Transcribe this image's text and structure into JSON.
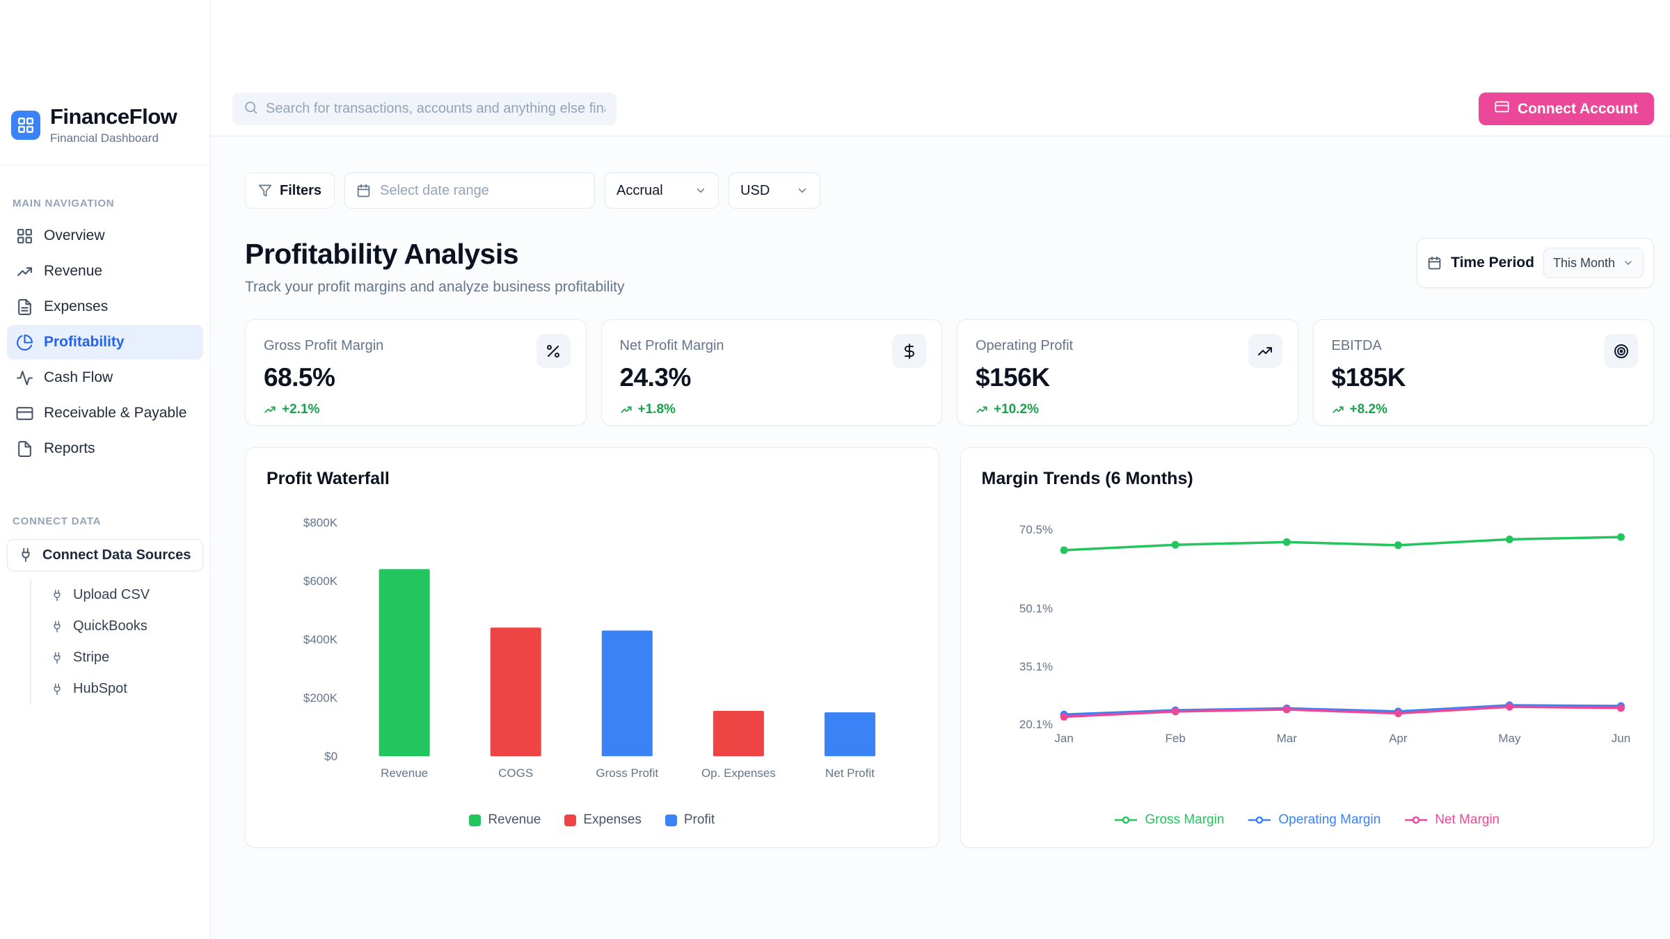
{
  "brand": {
    "name": "FinanceFlow",
    "tagline": "Financial Dashboard",
    "logo_icon": "grid-icon"
  },
  "topbar": {
    "search_placeholder": "Search for transactions, accounts and anything else financial",
    "search_icon": "search-icon",
    "connect_account_label": "Connect Account",
    "connect_account_icon": "credit-card-icon"
  },
  "filters": {
    "filters_label": "Filters",
    "filters_icon": "funnel-icon",
    "date_range_placeholder": "Select date range",
    "date_range_icon": "calendar-icon",
    "accounting_method": "Accrual",
    "currency": "USD"
  },
  "page": {
    "title": "Profitability Analysis",
    "subtitle": "Track your profit margins and analyze business profitability",
    "time_period_label": "Time Period",
    "time_period_value": "This Month",
    "time_period_icon": "calendar-icon"
  },
  "sidebar": {
    "main_nav_label": "MAIN NAVIGATION",
    "items": [
      {
        "label": "Overview",
        "icon": "grid-icon",
        "active": false
      },
      {
        "label": "Revenue",
        "icon": "trending-up-icon",
        "active": false
      },
      {
        "label": "Expenses",
        "icon": "file-text-icon",
        "active": false
      },
      {
        "label": "Profitability",
        "icon": "pie-chart-icon",
        "active": true
      },
      {
        "label": "Cash Flow",
        "icon": "activity-icon",
        "active": false
      },
      {
        "label": "Receivable & Payable",
        "icon": "credit-card-icon",
        "active": false
      },
      {
        "label": "Reports",
        "icon": "file-icon",
        "active": false
      }
    ],
    "connect_data_label": "CONNECT DATA",
    "connect_sources_label": "Connect Data Sources",
    "connect_sources_icon": "plug-icon",
    "sources": [
      {
        "label": "Upload CSV",
        "icon": "plug-icon"
      },
      {
        "label": "QuickBooks",
        "icon": "plug-icon"
      },
      {
        "label": "Stripe",
        "icon": "plug-icon"
      },
      {
        "label": "HubSpot",
        "icon": "plug-icon"
      }
    ]
  },
  "kpis": [
    {
      "title": "Gross Profit Margin",
      "value": "68.5%",
      "change": "+2.1%",
      "icon": "percent-icon"
    },
    {
      "title": "Net Profit Margin",
      "value": "24.3%",
      "change": "+1.8%",
      "icon": "dollar-icon"
    },
    {
      "title": "Operating Profit",
      "value": "$156K",
      "change": "+10.2%",
      "icon": "trending-up-icon"
    },
    {
      "title": "EBITDA",
      "value": "$185K",
      "change": "+8.2%",
      "icon": "target-icon"
    }
  ],
  "colors": {
    "accent_blue": "#3b82f6",
    "active_nav_bg": "#e8f0fe",
    "brand_pink": "#ec4899",
    "positive_green": "#16a34a",
    "revenue_green": "#22c55e",
    "expense_red": "#ef4444",
    "profit_blue": "#3b82f6",
    "net_margin_pink": "#ec4899"
  },
  "chart_data": [
    {
      "type": "bar",
      "title": "Profit Waterfall",
      "categories": [
        "Revenue",
        "COGS",
        "Gross Profit",
        "Op. Expenses",
        "Net Profit"
      ],
      "values": [
        640,
        440,
        430,
        155,
        150
      ],
      "value_unit": "$K",
      "bar_colors": [
        "#22c55e",
        "#ef4444",
        "#3b82f6",
        "#ef4444",
        "#3b82f6"
      ],
      "ylim": [
        0,
        800
      ],
      "yticks": [
        0,
        200,
        400,
        600,
        800
      ],
      "ytick_labels": [
        "$0",
        "$200K",
        "$400K",
        "$600K",
        "$800K"
      ],
      "grid": false,
      "legend_position": "bottom",
      "legend": [
        {
          "label": "Revenue",
          "color": "#22c55e"
        },
        {
          "label": "Expenses",
          "color": "#ef4444"
        },
        {
          "label": "Profit",
          "color": "#3b82f6"
        }
      ]
    },
    {
      "type": "line",
      "title": "Margin Trends (6 Months)",
      "x": [
        "Jan",
        "Feb",
        "Mar",
        "Apr",
        "May",
        "Jun"
      ],
      "series": [
        {
          "name": "Gross Margin",
          "color": "#22c55e",
          "values": [
            65.1,
            66.5,
            67.2,
            66.4,
            67.9,
            68.5
          ]
        },
        {
          "name": "Operating Margin",
          "color": "#3b82f6",
          "values": [
            22.6,
            23.7,
            24.2,
            23.4,
            25.0,
            24.8
          ]
        },
        {
          "name": "Net Margin",
          "color": "#ec4899",
          "values": [
            22.0,
            23.4,
            23.9,
            22.9,
            24.6,
            24.3
          ]
        }
      ],
      "yticks": [
        20.1,
        35.1,
        50.1,
        70.5
      ],
      "ytick_labels": [
        "20.1%",
        "35.1%",
        "50.1%",
        "70.5%"
      ],
      "grid": false,
      "legend_position": "bottom"
    }
  ]
}
